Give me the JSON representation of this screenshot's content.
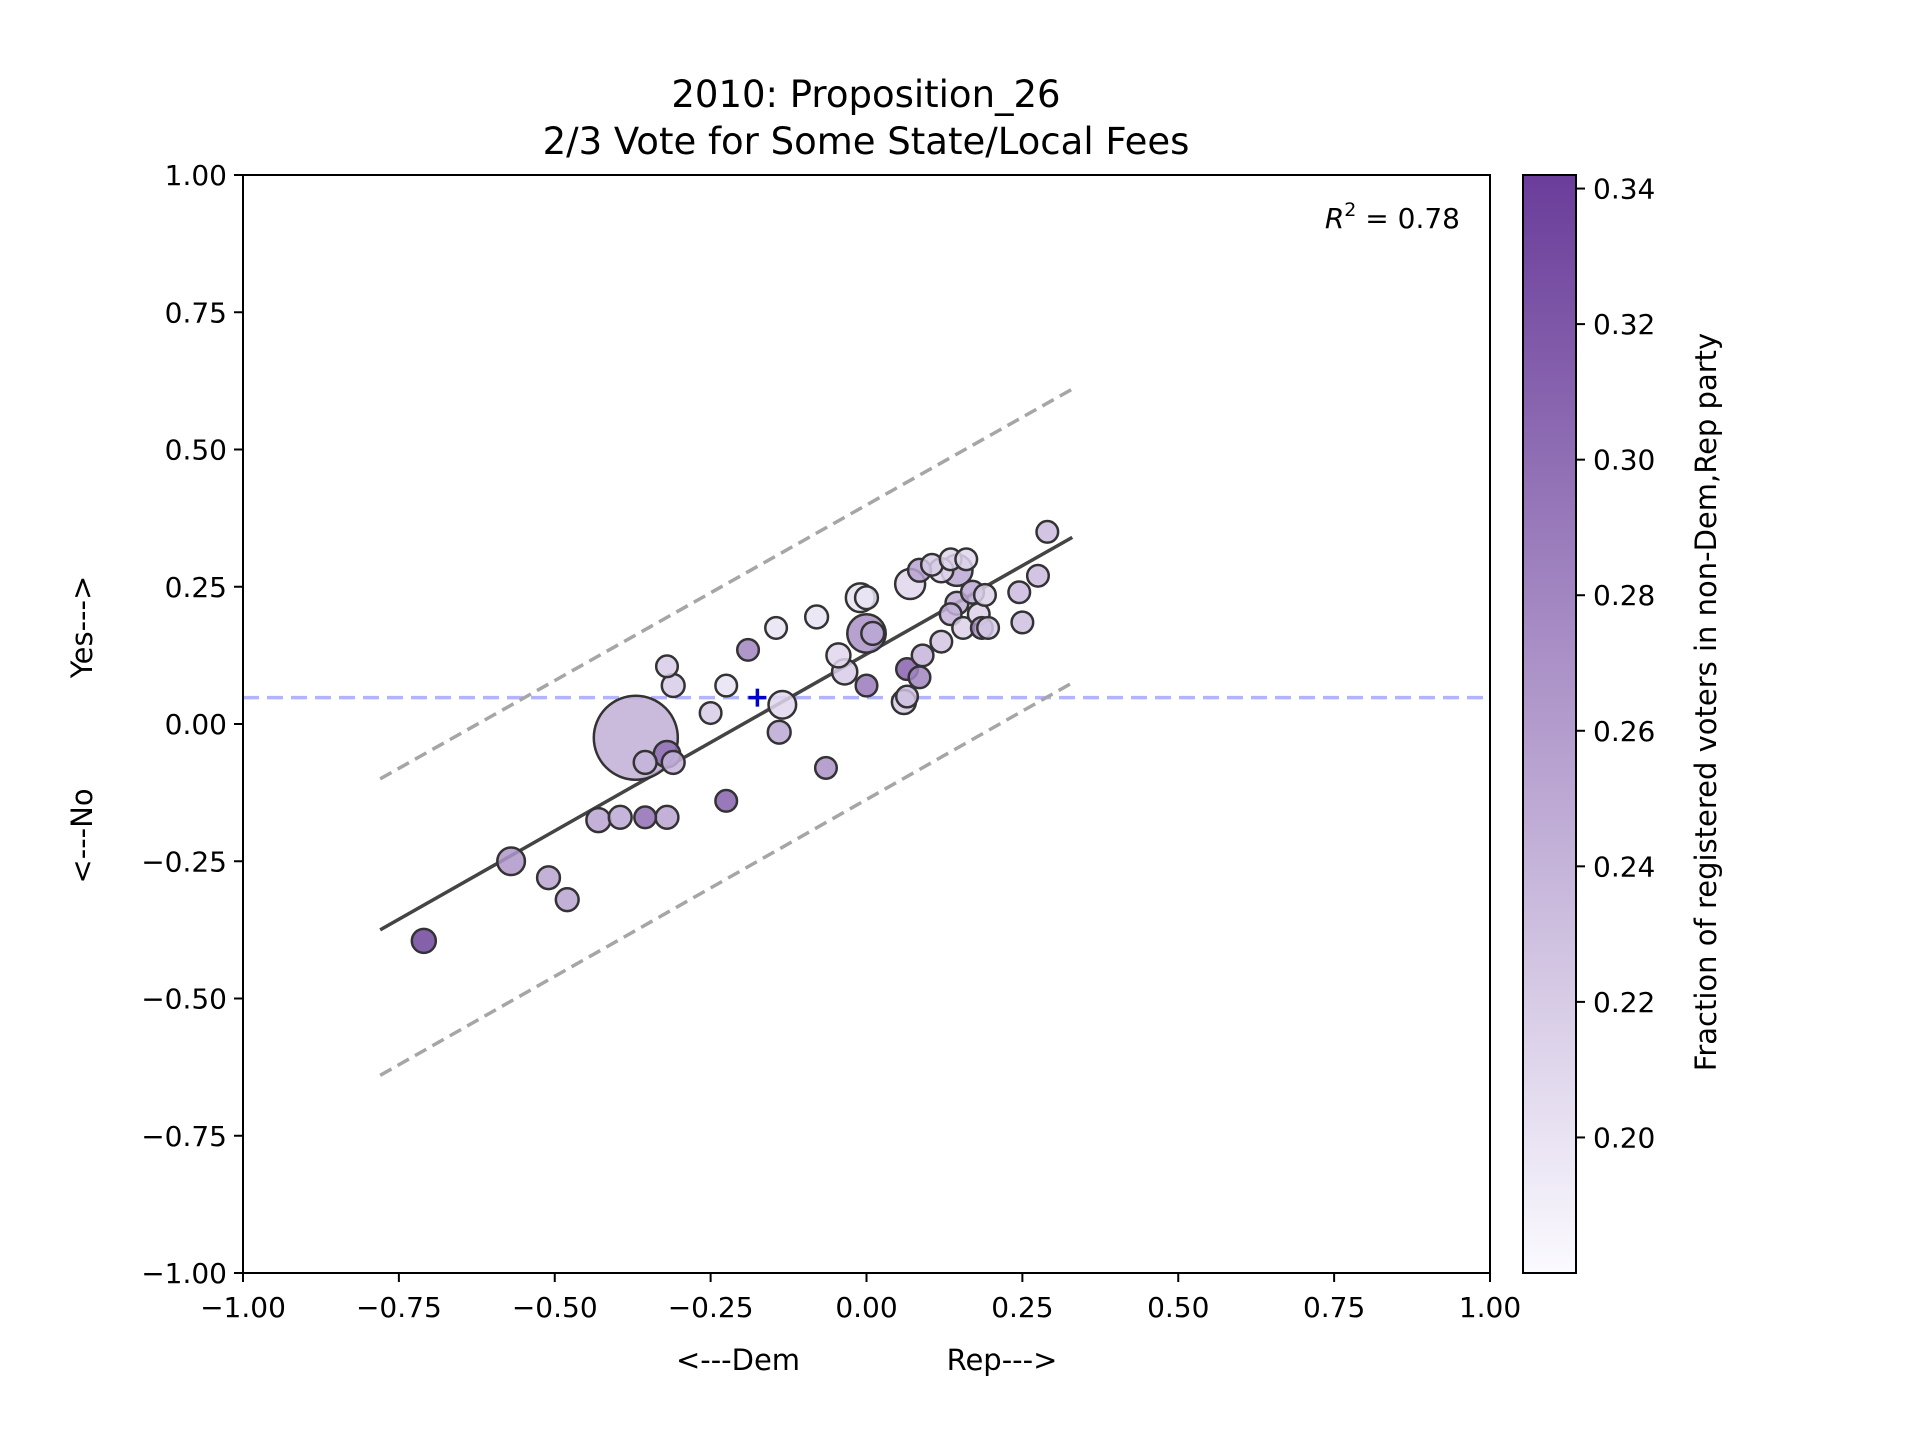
{
  "chart_data": {
    "type": "scatter",
    "title_line1": "2010: Proposition_26",
    "title_line2": "2/3 Vote for Some State/Local Fees",
    "xlabel_left": "<---Dem",
    "xlabel_right": "Rep--->",
    "ylabel_top": "Yes--->",
    "ylabel_bottom": "<---No",
    "xlim": [
      -1.0,
      1.0
    ],
    "ylim": [
      -1.0,
      1.0
    ],
    "xticks": [
      -1.0,
      -0.75,
      -0.5,
      -0.25,
      0.0,
      0.25,
      0.5,
      0.75,
      1.0
    ],
    "xtick_labels": [
      "−1.00",
      "−0.75",
      "−0.50",
      "−0.25",
      "0.00",
      "0.25",
      "0.50",
      "0.75",
      "1.00"
    ],
    "yticks": [
      1.0,
      0.75,
      0.5,
      0.25,
      0.0,
      -0.25,
      -0.5,
      -0.75,
      -1.0
    ],
    "ytick_labels": [
      "1.00",
      "0.75",
      "0.50",
      "0.25",
      "0.00",
      "−0.25",
      "−0.50",
      "−0.75",
      "−1.00"
    ],
    "annotation": "R² = 0.78",
    "annotation_parts": {
      "base": "R",
      "exp": "2",
      "rest": " = 0.78"
    },
    "grid": false,
    "fit_line": {
      "x": [
        -0.78,
        0.33
      ],
      "y": [
        -0.375,
        0.34
      ],
      "color": "#444444"
    },
    "upper_band": {
      "x": [
        -0.78,
        0.33
      ],
      "y": [
        -0.1,
        0.61
      ],
      "color": "#a6a6a6"
    },
    "lower_band": {
      "x": [
        -0.78,
        0.33
      ],
      "y": [
        -0.64,
        0.075
      ],
      "color": "#a6a6a6"
    },
    "reference_line": {
      "y": 0.048,
      "color": "#b3b3ff"
    },
    "marker": {
      "x": -0.175,
      "y": 0.048,
      "symbol": "+",
      "color": "#0000cc"
    },
    "colorbar": {
      "label": "Fraction of registered voters in non-Dem,Rep party",
      "range": [
        0.18,
        0.342
      ],
      "ticks": [
        0.2,
        0.22,
        0.24,
        0.26,
        0.28,
        0.3,
        0.32,
        0.34
      ],
      "tick_labels": [
        "0.20",
        "0.22",
        "0.24",
        "0.26",
        "0.28",
        "0.30",
        "0.32",
        "0.34"
      ],
      "color_low": "#fbfaff",
      "color_high": "#6a3d9a"
    },
    "points": [
      {
        "x": -0.37,
        "y": -0.025,
        "size": 3.5,
        "c": 0.245
      },
      {
        "x": -0.71,
        "y": -0.395,
        "size": 1.0,
        "c": 0.335
      },
      {
        "x": -0.57,
        "y": -0.25,
        "size": 1.15,
        "c": 0.265
      },
      {
        "x": -0.51,
        "y": -0.28,
        "size": 0.95,
        "c": 0.255
      },
      {
        "x": -0.48,
        "y": -0.32,
        "size": 0.95,
        "c": 0.255
      },
      {
        "x": -0.43,
        "y": -0.175,
        "size": 1.0,
        "c": 0.255
      },
      {
        "x": -0.395,
        "y": -0.17,
        "size": 0.95,
        "c": 0.25
      },
      {
        "x": -0.355,
        "y": -0.17,
        "size": 0.9,
        "c": 0.3
      },
      {
        "x": -0.32,
        "y": -0.17,
        "size": 0.95,
        "c": 0.255
      },
      {
        "x": -0.355,
        "y": -0.07,
        "size": 0.95,
        "c": 0.24
      },
      {
        "x": -0.32,
        "y": -0.055,
        "size": 1.1,
        "c": 0.3
      },
      {
        "x": -0.31,
        "y": -0.07,
        "size": 0.95,
        "c": 0.24
      },
      {
        "x": -0.32,
        "y": 0.105,
        "size": 0.9,
        "c": 0.22
      },
      {
        "x": -0.31,
        "y": 0.07,
        "size": 0.95,
        "c": 0.22
      },
      {
        "x": -0.25,
        "y": 0.02,
        "size": 0.9,
        "c": 0.22
      },
      {
        "x": -0.225,
        "y": 0.07,
        "size": 0.9,
        "c": 0.2
      },
      {
        "x": -0.225,
        "y": -0.14,
        "size": 0.9,
        "c": 0.31
      },
      {
        "x": -0.19,
        "y": 0.135,
        "size": 0.9,
        "c": 0.28
      },
      {
        "x": -0.145,
        "y": 0.175,
        "size": 0.9,
        "c": 0.2
      },
      {
        "x": -0.135,
        "y": 0.035,
        "size": 1.15,
        "c": 0.21
      },
      {
        "x": -0.14,
        "y": -0.015,
        "size": 0.95,
        "c": 0.25
      },
      {
        "x": -0.08,
        "y": 0.195,
        "size": 0.95,
        "c": 0.2
      },
      {
        "x": -0.065,
        "y": -0.08,
        "size": 0.9,
        "c": 0.27
      },
      {
        "x": -0.045,
        "y": 0.125,
        "size": 1.0,
        "c": 0.21
      },
      {
        "x": -0.035,
        "y": 0.095,
        "size": 1.05,
        "c": 0.22
      },
      {
        "x": -0.01,
        "y": 0.23,
        "size": 1.2,
        "c": 0.2
      },
      {
        "x": 0.0,
        "y": 0.23,
        "size": 0.95,
        "c": 0.2
      },
      {
        "x": 0.0,
        "y": 0.165,
        "size": 1.6,
        "c": 0.27
      },
      {
        "x": 0.01,
        "y": 0.165,
        "size": 0.95,
        "c": 0.25
      },
      {
        "x": 0.0,
        "y": 0.07,
        "size": 0.9,
        "c": 0.29
      },
      {
        "x": 0.06,
        "y": 0.04,
        "size": 1.0,
        "c": 0.22
      },
      {
        "x": 0.065,
        "y": 0.05,
        "size": 0.9,
        "c": 0.23
      },
      {
        "x": 0.065,
        "y": 0.1,
        "size": 0.9,
        "c": 0.31
      },
      {
        "x": 0.085,
        "y": 0.085,
        "size": 0.9,
        "c": 0.28
      },
      {
        "x": 0.09,
        "y": 0.125,
        "size": 0.9,
        "c": 0.24
      },
      {
        "x": 0.07,
        "y": 0.255,
        "size": 1.25,
        "c": 0.21
      },
      {
        "x": 0.085,
        "y": 0.28,
        "size": 0.95,
        "c": 0.255
      },
      {
        "x": 0.105,
        "y": 0.29,
        "size": 0.9,
        "c": 0.22
      },
      {
        "x": 0.12,
        "y": 0.28,
        "size": 1.0,
        "c": 0.21
      },
      {
        "x": 0.135,
        "y": 0.3,
        "size": 0.9,
        "c": 0.21
      },
      {
        "x": 0.145,
        "y": 0.28,
        "size": 1.3,
        "c": 0.25
      },
      {
        "x": 0.16,
        "y": 0.3,
        "size": 0.9,
        "c": 0.21
      },
      {
        "x": 0.12,
        "y": 0.15,
        "size": 0.9,
        "c": 0.225
      },
      {
        "x": 0.135,
        "y": 0.2,
        "size": 0.9,
        "c": 0.24
      },
      {
        "x": 0.145,
        "y": 0.22,
        "size": 0.95,
        "c": 0.245
      },
      {
        "x": 0.155,
        "y": 0.175,
        "size": 0.9,
        "c": 0.215
      },
      {
        "x": 0.17,
        "y": 0.24,
        "size": 0.95,
        "c": 0.25
      },
      {
        "x": 0.18,
        "y": 0.2,
        "size": 0.9,
        "c": 0.215
      },
      {
        "x": 0.19,
        "y": 0.235,
        "size": 0.9,
        "c": 0.215
      },
      {
        "x": 0.185,
        "y": 0.175,
        "size": 0.9,
        "c": 0.27
      },
      {
        "x": 0.195,
        "y": 0.175,
        "size": 0.9,
        "c": 0.22
      },
      {
        "x": 0.245,
        "y": 0.24,
        "size": 0.9,
        "c": 0.235
      },
      {
        "x": 0.25,
        "y": 0.185,
        "size": 0.9,
        "c": 0.23
      },
      {
        "x": 0.275,
        "y": 0.27,
        "size": 0.9,
        "c": 0.235
      },
      {
        "x": 0.29,
        "y": 0.35,
        "size": 0.9,
        "c": 0.235
      }
    ]
  }
}
